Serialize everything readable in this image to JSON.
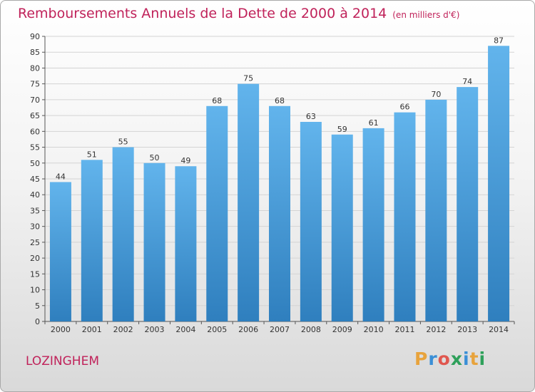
{
  "header": {
    "title": "Remboursements Annuels de la Dette de 2000 à 2014",
    "unit": "(en milliers d'€)"
  },
  "footer": {
    "commune": "LOZINGHEM",
    "logo_letters": [
      "P",
      "r",
      "o",
      "x",
      "i",
      "t",
      "i"
    ],
    "logo_colors": [
      "#e8a33c",
      "#3a8fd6",
      "#e0574f",
      "#2ea05a",
      "#3a8fd6",
      "#e8a33c",
      "#2ea05a"
    ]
  },
  "chart_data": {
    "type": "bar",
    "categories": [
      "2000",
      "2001",
      "2002",
      "2003",
      "2004",
      "2005",
      "2006",
      "2007",
      "2008",
      "2009",
      "2010",
      "2011",
      "2012",
      "2013",
      "2014"
    ],
    "values": [
      44,
      51,
      55,
      50,
      49,
      68,
      75,
      68,
      63,
      59,
      61,
      66,
      70,
      74,
      87
    ],
    "ylim": [
      0,
      90
    ],
    "yticks": [
      0,
      5,
      10,
      15,
      20,
      25,
      30,
      35,
      40,
      45,
      50,
      55,
      60,
      65,
      70,
      75,
      80,
      85,
      90
    ],
    "grid": true,
    "bar_color_top": "#62b4ec",
    "bar_color_bottom": "#2f7fbe"
  }
}
